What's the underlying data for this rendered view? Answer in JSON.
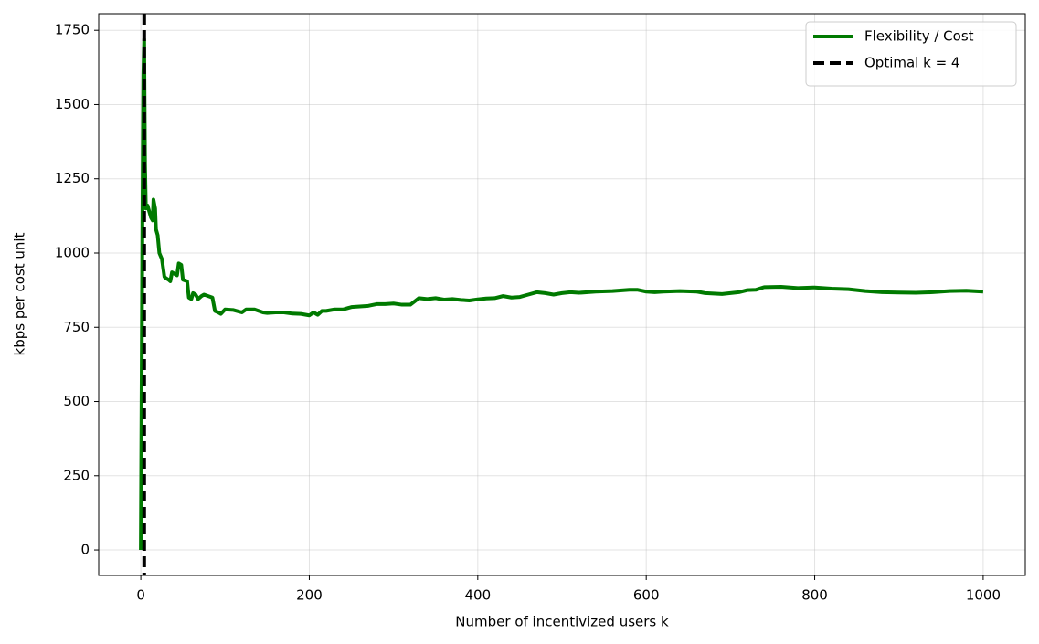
{
  "chart_data": {
    "type": "line",
    "xlabel": "Number of incentivized users k",
    "ylabel": "kbps per cost unit",
    "xlim": [
      -50,
      1050
    ],
    "ylim": [
      -86,
      1806
    ],
    "xticks": [
      0,
      200,
      400,
      600,
      800,
      1000
    ],
    "yticks": [
      0,
      250,
      500,
      750,
      1000,
      1250,
      1500,
      1750
    ],
    "grid": true,
    "legend": "upper right",
    "series": [
      {
        "name": "Flexibility / Cost",
        "color": "#007a00",
        "x": [
          0,
          1,
          2,
          3,
          4,
          5,
          6,
          8,
          10,
          12,
          14,
          15,
          17,
          18,
          20,
          22,
          25,
          28,
          30,
          33,
          35,
          37,
          40,
          43,
          45,
          48,
          50,
          55,
          57,
          60,
          62,
          65,
          68,
          72,
          75,
          80,
          85,
          88,
          92,
          95,
          100,
          110,
          120,
          125,
          135,
          140,
          145,
          150,
          160,
          170,
          180,
          190,
          200,
          205,
          210,
          215,
          220,
          230,
          240,
          250,
          260,
          270,
          280,
          290,
          300,
          310,
          320,
          330,
          340,
          350,
          360,
          370,
          380,
          390,
          400,
          410,
          420,
          430,
          440,
          450,
          460,
          470,
          480,
          490,
          500,
          510,
          520,
          540,
          560,
          580,
          590,
          600,
          610,
          620,
          640,
          660,
          670,
          690,
          710,
          720,
          730,
          740,
          760,
          780,
          800,
          820,
          840,
          860,
          880,
          900,
          920,
          940,
          960,
          980,
          1000
        ],
        "values": [
          0,
          580,
          1150,
          1600,
          1720,
          1300,
          1150,
          1160,
          1140,
          1120,
          1110,
          1180,
          1150,
          1080,
          1060,
          1000,
          980,
          920,
          915,
          910,
          905,
          935,
          930,
          925,
          965,
          960,
          910,
          905,
          850,
          845,
          865,
          860,
          845,
          855,
          860,
          855,
          850,
          805,
          800,
          795,
          810,
          808,
          800,
          810,
          810,
          805,
          800,
          798,
          800,
          800,
          796,
          795,
          790,
          800,
          792,
          805,
          805,
          810,
          810,
          818,
          820,
          822,
          828,
          828,
          830,
          826,
          826,
          848,
          845,
          848,
          843,
          845,
          842,
          840,
          844,
          847,
          848,
          855,
          850,
          852,
          860,
          868,
          865,
          860,
          865,
          868,
          866,
          870,
          872,
          876,
          876,
          870,
          868,
          870,
          872,
          870,
          865,
          862,
          868,
          875,
          876,
          885,
          886,
          882,
          884,
          880,
          878,
          872,
          868,
          867,
          866,
          868,
          872,
          873,
          870
        ]
      }
    ],
    "vline": {
      "name": "Optimal k = 4",
      "x": 4,
      "color": "#000000"
    }
  }
}
